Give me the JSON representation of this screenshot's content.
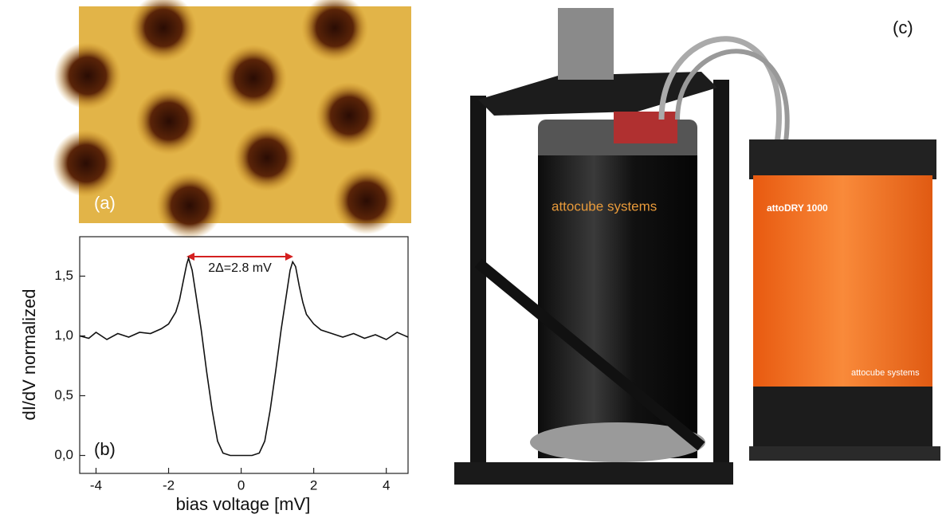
{
  "panels": {
    "a": "(a)",
    "b": "(b)",
    "c": "(c)"
  },
  "photo_labels": {
    "cryostat_brand": "attocube systems",
    "compressor_model": "attoDRY 1000",
    "compressor_brand": "attocube systems"
  },
  "chart_data": {
    "type": "line",
    "xlabel": "bias voltage [mV]",
    "ylabel": "dI/dV normalized",
    "annotation": "2Δ=2.8 mV",
    "color": "#111111",
    "xlim": [
      -4.45,
      4.6
    ],
    "ylim": [
      -0.15,
      1.83
    ],
    "xticks": [
      -4,
      -2,
      0,
      2,
      4
    ],
    "yticks": [
      {
        "value": 0,
        "label": "0,0"
      },
      {
        "value": 0.5,
        "label": "0,5"
      },
      {
        "value": 1,
        "label": "1,0"
      },
      {
        "value": 1.5,
        "label": "1,5"
      }
    ],
    "x": [
      -4.45,
      -4.2,
      -4.0,
      -3.7,
      -3.4,
      -3.1,
      -2.8,
      -2.5,
      -2.2,
      -2.0,
      -1.8,
      -1.7,
      -1.6,
      -1.5,
      -1.45,
      -1.35,
      -1.25,
      -1.1,
      -0.95,
      -0.8,
      -0.65,
      -0.5,
      -0.3,
      0.0,
      0.3,
      0.5,
      0.65,
      0.8,
      0.95,
      1.1,
      1.25,
      1.35,
      1.42,
      1.5,
      1.6,
      1.7,
      1.8,
      2.0,
      2.2,
      2.5,
      2.8,
      3.1,
      3.4,
      3.7,
      4.0,
      4.3,
      4.6
    ],
    "values": [
      1.0,
      0.98,
      1.03,
      0.97,
      1.02,
      0.99,
      1.03,
      1.02,
      1.06,
      1.1,
      1.2,
      1.3,
      1.45,
      1.6,
      1.65,
      1.55,
      1.35,
      1.05,
      0.7,
      0.38,
      0.12,
      0.02,
      0.0,
      0.0,
      0.0,
      0.02,
      0.12,
      0.38,
      0.7,
      1.05,
      1.35,
      1.55,
      1.62,
      1.58,
      1.42,
      1.28,
      1.18,
      1.1,
      1.05,
      1.02,
      0.99,
      1.02,
      0.98,
      1.01,
      0.97,
      1.03,
      0.99
    ]
  }
}
